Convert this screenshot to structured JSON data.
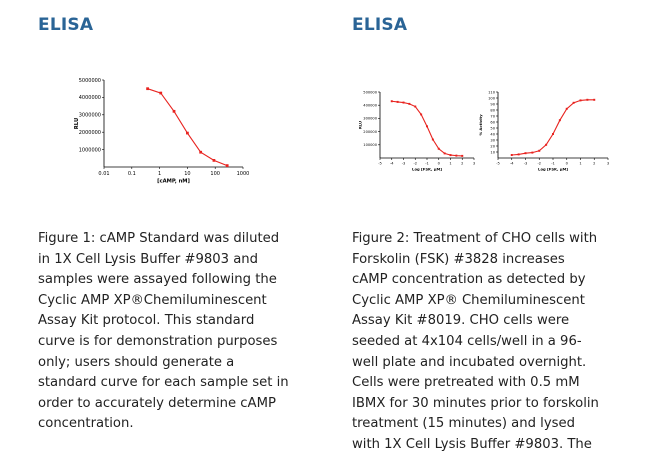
{
  "left": {
    "heading": "ELISA",
    "caption_lines": [
      "Figure 1: cAMP Standard was diluted",
      "in 1X Cell Lysis Buffer #9803 and",
      "samples were assayed following the",
      "Cyclic AMP XP®Chemiluminescent",
      "Assay Kit protocol. This standard",
      "curve is for demonstration purposes",
      "only; users should generate a",
      "standard curve for each sample set in",
      "order to accurately determine cAMP",
      "concentration."
    ]
  },
  "right": {
    "heading": "ELISA",
    "caption_lines": [
      "Figure 2: Treatment of CHO cells with",
      "Forskolin (FSK) #3828 increases",
      "cAMP concentration as detected by",
      "Cyclic AMP XP® Chemiluminescent",
      "Assay Kit #8019. CHO cells were",
      "seeded at 4x104 cells/well in a 96-",
      "well plate and incubated overnight.",
      "Cells were pretreated with 0.5 mM",
      "IBMX for 30 minutes prior to forskolin",
      "treatment (15 minutes) and lysed",
      "with 1X Cell Lysis Buffer #9803. The"
    ]
  },
  "chart_data": [
    {
      "type": "line",
      "xlabel": "[cAMP, nM]",
      "ylabel": "RLU",
      "xscale": "log",
      "xlim": [
        0.01,
        1000
      ],
      "ylim": [
        0,
        5000000
      ],
      "xticks": [
        "0.01",
        "0.1",
        "1",
        "10",
        "100",
        "1000"
      ],
      "yticks": [
        "1000000",
        "2000000",
        "3000000",
        "4000000",
        "5000000"
      ],
      "color": "#e8231f",
      "x": [
        0.37,
        1.1,
        3.3,
        10,
        30,
        90,
        270
      ],
      "y": [
        4500000,
        4250000,
        3200000,
        1950000,
        850000,
        380000,
        80000
      ]
    },
    {
      "type": "line",
      "xlabel": "Log [FSK, µM]",
      "ylabel": "RLU",
      "xlim": [
        -5,
        3
      ],
      "ylim": [
        0,
        500000
      ],
      "xticks": [
        "-5",
        "-4",
        "-3",
        "-2",
        "-1",
        "0",
        "1",
        "2",
        "3"
      ],
      "yticks": [
        "100000",
        "200000",
        "300000",
        "400000",
        "500000"
      ],
      "color": "#e8231f",
      "x": [
        -4,
        -3.5,
        -3,
        -2.5,
        -2,
        -1.5,
        -1,
        -0.5,
        0,
        0.5,
        1,
        1.5,
        2
      ],
      "y": [
        430000,
        425000,
        420000,
        410000,
        390000,
        330000,
        240000,
        140000,
        70000,
        35000,
        22000,
        18000,
        16000
      ]
    },
    {
      "type": "line",
      "xlabel": "Log [FSK, µM]",
      "ylabel": "% Activity",
      "xlim": [
        -5,
        3
      ],
      "ylim": [
        0,
        110
      ],
      "xticks": [
        "-5",
        "-4",
        "-3",
        "-2",
        "-1",
        "0",
        "1",
        "2",
        "3"
      ],
      "yticks": [
        "10",
        "20",
        "30",
        "40",
        "50",
        "60",
        "70",
        "80",
        "90",
        "100",
        "110"
      ],
      "color": "#e8231f",
      "x": [
        -4,
        -3.5,
        -3,
        -2.5,
        -2,
        -1.5,
        -1,
        -0.5,
        0,
        0.5,
        1,
        1.5,
        2
      ],
      "y": [
        5,
        6,
        8,
        9,
        12,
        22,
        40,
        63,
        82,
        92,
        96,
        97,
        97
      ]
    }
  ]
}
